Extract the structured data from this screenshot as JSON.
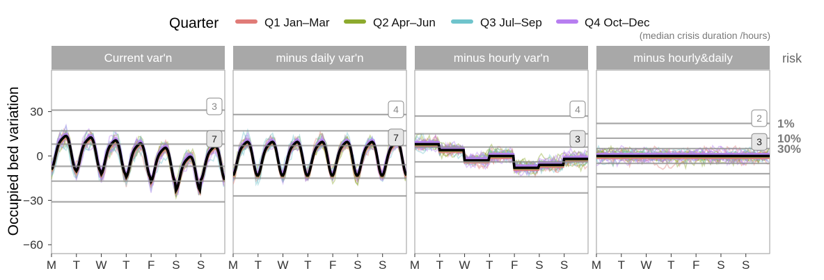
{
  "legend": {
    "title": "Quarter",
    "items": [
      {
        "label": "Q1 Jan–Mar",
        "color": "#E07B77"
      },
      {
        "label": "Q2 Apr–Jun",
        "color": "#8DAA2E"
      },
      {
        "label": "Q3 Jul–Sep",
        "color": "#6FC4CC"
      },
      {
        "label": "Q4 Oct–Dec",
        "color": "#B77EF0"
      }
    ]
  },
  "chart_data": {
    "type": "line",
    "ylabel": "Occupied bed variation",
    "yticks": [
      30,
      0,
      -30,
      -60
    ],
    "ylim": [
      -66,
      58
    ],
    "xticks": [
      "M",
      "T",
      "W",
      "T",
      "F",
      "S",
      "S"
    ],
    "note": "(median crisis duration /hours)",
    "risk_title": "risk",
    "risk_labels": [
      {
        "label": "1%",
        "y": 22
      },
      {
        "label": "10%",
        "y": 12
      },
      {
        "label": "30%",
        "y": 5
      }
    ],
    "mean_color": "#000000",
    "panels": [
      {
        "title": "Current var'n",
        "pattern": "daily-hourly",
        "hlines": [
          31,
          17,
          8,
          -7,
          -17,
          -31
        ],
        "badges": [
          {
            "label": "3",
            "y": 34,
            "style": "light"
          },
          {
            "label": "7",
            "y": 12,
            "style": "dark"
          }
        ]
      },
      {
        "title": "minus daily var'n",
        "pattern": "hourly",
        "hlines": [
          28,
          17,
          7,
          -6,
          -15,
          -27
        ],
        "badges": [
          {
            "label": "4",
            "y": 32,
            "style": "light"
          },
          {
            "label": "7",
            "y": 13,
            "style": "dark"
          }
        ]
      },
      {
        "title": "minus hourly var'n",
        "pattern": "daily",
        "hlines": [
          27,
          15,
          6,
          -4,
          -14,
          -25
        ],
        "badges": [
          {
            "label": "4",
            "y": 32,
            "style": "light"
          },
          {
            "label": "3",
            "y": 12,
            "style": "dark"
          }
        ]
      },
      {
        "title": "minus hourly&daily",
        "pattern": "flat",
        "hlines": [
          22,
          12,
          5,
          -5,
          -12,
          -21
        ],
        "badges": [
          {
            "label": "2",
            "y": 26,
            "style": "light"
          },
          {
            "label": "3",
            "y": 10,
            "style": "dark"
          }
        ]
      }
    ]
  }
}
